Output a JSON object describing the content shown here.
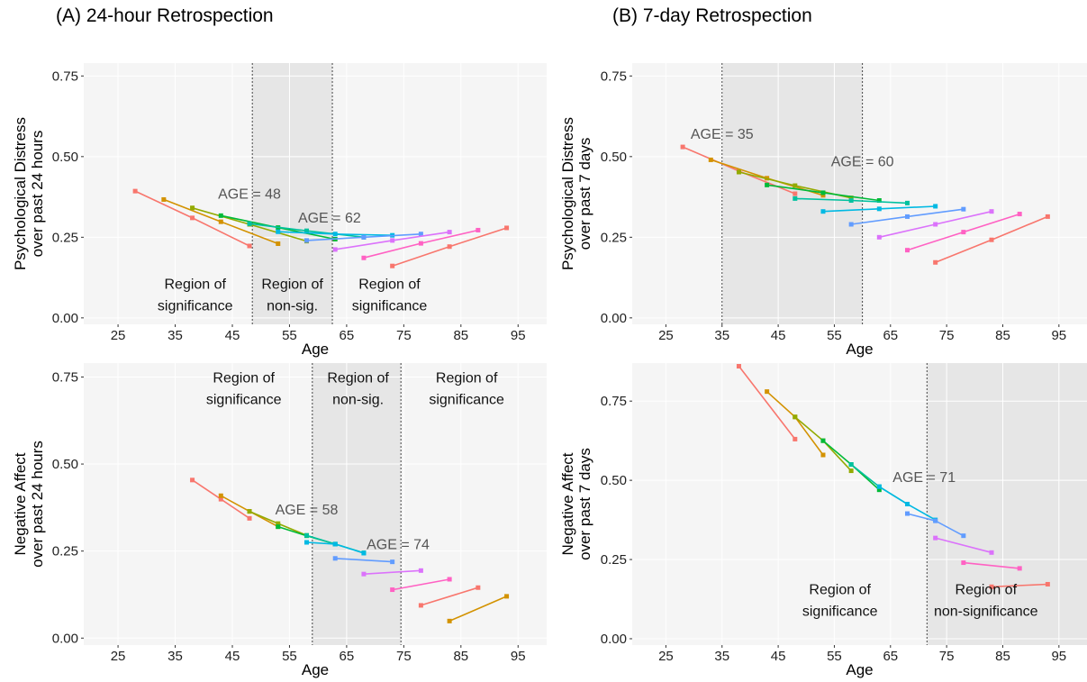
{
  "panel_titles": [
    "(A) 24-hour Retrospection",
    "(B) 7-day Retrospection"
  ],
  "series_colors": [
    "#f8766d",
    "#d39200",
    "#93aa00",
    "#00ba38",
    "#00c19f",
    "#00b9e3",
    "#619cff",
    "#db72fb",
    "#ff61c3"
  ],
  "chart_data": [
    {
      "type": "line",
      "panel": "A-top",
      "xlabel": "Age",
      "ylabel": [
        "Psychological Distress",
        "over past 24 hours"
      ],
      "xlim": [
        19,
        100
      ],
      "ylim": [
        -0.02,
        0.79
      ],
      "x_ticks": [
        25,
        35,
        45,
        55,
        65,
        75,
        85,
        95
      ],
      "y_ticks": [
        0.0,
        0.25,
        0.5,
        0.75
      ],
      "y_tick_labels": [
        "0.00",
        "0.25",
        "0.50",
        "0.75"
      ],
      "shaded_region": [
        48.5,
        62.5
      ],
      "series": [
        {
          "x": [
            28,
            38,
            48
          ],
          "y": [
            0.393,
            0.31,
            0.223
          ]
        },
        {
          "x": [
            33,
            43,
            53
          ],
          "y": [
            0.367,
            0.298,
            0.23
          ]
        },
        {
          "x": [
            38,
            48,
            58
          ],
          "y": [
            0.341,
            0.29,
            0.238
          ]
        },
        {
          "x": [
            43,
            53,
            63
          ],
          "y": [
            0.317,
            0.28,
            0.244
          ]
        },
        {
          "x": [
            48,
            58,
            68
          ],
          "y": [
            0.292,
            0.27,
            0.25
          ]
        },
        {
          "x": [
            53,
            63,
            73
          ],
          "y": [
            0.267,
            0.26,
            0.256
          ]
        },
        {
          "x": [
            58,
            68,
            78
          ],
          "y": [
            0.24,
            0.25,
            0.26
          ]
        },
        {
          "x": [
            63,
            73,
            83
          ],
          "y": [
            0.212,
            0.24,
            0.266
          ]
        },
        {
          "x": [
            68,
            78,
            88
          ],
          "y": [
            0.186,
            0.231,
            0.272
          ]
        },
        {
          "x": [
            73,
            83,
            93
          ],
          "y": [
            0.161,
            0.221,
            0.279
          ]
        }
      ],
      "annotations": [
        {
          "text": "AGE = 48",
          "x": 48,
          "y": 0.37
        },
        {
          "text": "AGE = 62",
          "x": 62,
          "y": 0.295
        }
      ],
      "region_labels": [
        {
          "lines": [
            "Region of",
            "significance"
          ],
          "x": 38.5,
          "y": 0.09
        },
        {
          "lines": [
            "Region of",
            "non-sig."
          ],
          "x": 55.5,
          "y": 0.09
        },
        {
          "lines": [
            "Region of",
            "significance"
          ],
          "x": 72.5,
          "y": 0.09
        }
      ]
    },
    {
      "type": "line",
      "panel": "B-top",
      "xlabel": "Age",
      "ylabel": [
        "Psychological Distress",
        "over past 7 days"
      ],
      "xlim": [
        19,
        100
      ],
      "ylim": [
        -0.02,
        0.79
      ],
      "x_ticks": [
        25,
        35,
        45,
        55,
        65,
        75,
        85,
        95
      ],
      "y_ticks": [
        0.0,
        0.25,
        0.5,
        0.75
      ],
      "y_tick_labels": [
        "0.00",
        "0.25",
        "0.50",
        "0.75"
      ],
      "shaded_region": [
        35,
        60
      ],
      "series": [
        {
          "x": [
            28,
            38,
            48
          ],
          "y": [
            0.53,
            0.455,
            0.385
          ]
        },
        {
          "x": [
            33,
            43,
            53
          ],
          "y": [
            0.49,
            0.433,
            0.38
          ]
        },
        {
          "x": [
            38,
            48,
            58
          ],
          "y": [
            0.452,
            0.41,
            0.372
          ]
        },
        {
          "x": [
            43,
            53,
            63
          ],
          "y": [
            0.412,
            0.388,
            0.364
          ]
        },
        {
          "x": [
            48,
            58,
            68
          ],
          "y": [
            0.37,
            0.364,
            0.356
          ]
        },
        {
          "x": [
            53,
            63,
            73
          ],
          "y": [
            0.33,
            0.338,
            0.346
          ]
        },
        {
          "x": [
            58,
            68,
            78
          ],
          "y": [
            0.29,
            0.314,
            0.337
          ]
        },
        {
          "x": [
            63,
            73,
            83
          ],
          "y": [
            0.25,
            0.29,
            0.33
          ]
        },
        {
          "x": [
            68,
            78,
            88
          ],
          "y": [
            0.21,
            0.266,
            0.322
          ]
        },
        {
          "x": [
            73,
            83,
            93
          ],
          "y": [
            0.172,
            0.242,
            0.314
          ]
        }
      ],
      "annotations": [
        {
          "text": "AGE = 35",
          "x": 35,
          "y": 0.555
        },
        {
          "text": "AGE = 60",
          "x": 60,
          "y": 0.47
        }
      ],
      "region_labels": []
    },
    {
      "type": "line",
      "panel": "A-bottom",
      "xlabel": "Age",
      "ylabel": [
        "Negative Affect",
        "over past 24 hours"
      ],
      "xlim": [
        19,
        100
      ],
      "ylim": [
        -0.02,
        0.79
      ],
      "x_ticks": [
        25,
        35,
        45,
        55,
        65,
        75,
        85,
        95
      ],
      "y_ticks": [
        0.0,
        0.25,
        0.5,
        0.75
      ],
      "y_tick_labels": [
        "0.00",
        "0.25",
        "0.50",
        "0.75"
      ],
      "shaded_region": [
        59,
        74.5
      ],
      "series": [
        {
          "x": [
            38,
            43,
            48
          ],
          "y": [
            0.454,
            0.399,
            0.344
          ]
        },
        {
          "x": [
            43,
            48,
            53
          ],
          "y": [
            0.409,
            0.364,
            0.32
          ]
        },
        {
          "x": [
            48,
            53,
            58
          ],
          "y": [
            0.364,
            0.329,
            0.295
          ]
        },
        {
          "x": [
            53,
            58,
            63
          ],
          "y": [
            0.32,
            0.294,
            0.27
          ]
        },
        {
          "x": [
            58,
            63,
            68
          ],
          "y": [
            0.295,
            0.27,
            0.245
          ]
        },
        {
          "x": [
            58,
            63,
            68
          ],
          "y": [
            0.275,
            0.27,
            0.244
          ]
        },
        {
          "x": [
            63,
            73
          ],
          "y": [
            0.229,
            0.219
          ]
        },
        {
          "x": [
            68,
            78
          ],
          "y": [
            0.184,
            0.194
          ]
        },
        {
          "x": [
            73,
            83
          ],
          "y": [
            0.139,
            0.169
          ]
        },
        {
          "x": [
            78,
            88
          ],
          "y": [
            0.094,
            0.145
          ]
        },
        {
          "x": [
            83,
            93
          ],
          "y": [
            0.049,
            0.12
          ]
        }
      ],
      "annotations": [
        {
          "text": "AGE = 58",
          "x": 58,
          "y": 0.355
        },
        {
          "text": "AGE = 74",
          "x": 74,
          "y": 0.255
        }
      ],
      "region_labels": [
        {
          "lines": [
            "Region of",
            "significance"
          ],
          "x": 47,
          "y": 0.735
        },
        {
          "lines": [
            "Region of",
            "non-sig."
          ],
          "x": 67,
          "y": 0.735
        },
        {
          "lines": [
            "Region of",
            "significance"
          ],
          "x": 86,
          "y": 0.735
        }
      ]
    },
    {
      "type": "line",
      "panel": "B-bottom",
      "xlabel": "Age",
      "ylabel": [
        "Negative Affect",
        "over past 7 days"
      ],
      "xlim": [
        19,
        100
      ],
      "ylim": [
        -0.02,
        0.87
      ],
      "x_ticks": [
        25,
        35,
        45,
        55,
        65,
        75,
        85,
        95
      ],
      "y_ticks": [
        0.0,
        0.25,
        0.5,
        0.75
      ],
      "y_tick_labels": [
        "0.00",
        "0.25",
        "0.50",
        "0.75"
      ],
      "shaded_region": [
        71.5,
        100
      ],
      "series": [
        {
          "x": [
            38,
            48
          ],
          "y": [
            0.86,
            0.63
          ]
        },
        {
          "x": [
            43,
            48,
            53
          ],
          "y": [
            0.78,
            0.7,
            0.58
          ]
        },
        {
          "x": [
            48,
            53,
            58
          ],
          "y": [
            0.7,
            0.625,
            0.53
          ]
        },
        {
          "x": [
            53,
            58,
            63
          ],
          "y": [
            0.625,
            0.55,
            0.47
          ]
        },
        {
          "x": [
            58,
            63,
            68
          ],
          "y": [
            0.55,
            0.48,
            0.425
          ]
        },
        {
          "x": [
            63,
            68,
            73
          ],
          "y": [
            0.48,
            0.425,
            0.375
          ]
        },
        {
          "x": [
            68,
            73,
            78
          ],
          "y": [
            0.395,
            0.372,
            0.325
          ]
        },
        {
          "x": [
            73,
            83
          ],
          "y": [
            0.318,
            0.272
          ]
        },
        {
          "x": [
            78,
            88
          ],
          "y": [
            0.24,
            0.222
          ]
        },
        {
          "x": [
            83,
            93
          ],
          "y": [
            0.164,
            0.172
          ]
        }
      ],
      "annotations": [
        {
          "text": "AGE = 71",
          "x": 71,
          "y": 0.495
        }
      ],
      "region_labels": [
        {
          "lines": [
            "Region of",
            "significance"
          ],
          "x": 56,
          "y": 0.14
        },
        {
          "lines": [
            "Region of",
            "non-significance"
          ],
          "x": 82,
          "y": 0.14
        }
      ]
    }
  ]
}
